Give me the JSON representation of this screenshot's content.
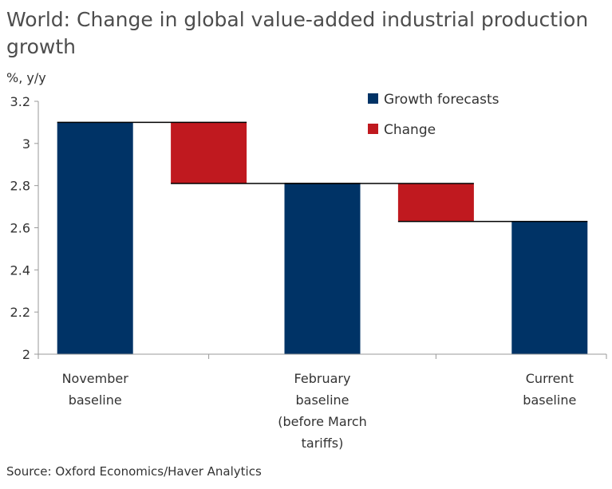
{
  "chart_data": {
    "type": "bar",
    "title": "World: Change in global value-added industrial production growth",
    "ylabel": "%, y/y",
    "ylim": [
      2,
      3.2
    ],
    "yticks": [
      "3.2",
      "3",
      "2.8",
      "2.6",
      "2.4",
      "2.2",
      "2"
    ],
    "ytick_values": [
      3.2,
      3.0,
      2.8,
      2.6,
      2.4,
      2.2,
      2.0
    ],
    "categories": [
      [
        "November",
        "baseline"
      ],
      [
        "February",
        "baseline",
        "(before March",
        "tariffs)"
      ],
      [
        "Current",
        "baseline"
      ]
    ],
    "bars": [
      {
        "series": "Growth forecasts",
        "bottom": 2.0,
        "top": 3.1
      },
      {
        "series": "Change",
        "bottom": 2.81,
        "top": 3.1
      },
      {
        "series": "Growth forecasts",
        "bottom": 2.0,
        "top": 2.81
      },
      {
        "series": "Change",
        "bottom": 2.63,
        "top": 2.81
      },
      {
        "series": "Growth forecasts",
        "bottom": 2.0,
        "top": 2.63
      }
    ],
    "legend": [
      {
        "label": "Growth forecasts",
        "color": "#003366"
      },
      {
        "label": "Change",
        "color": "#c0191f"
      }
    ],
    "legend_position": "top-right",
    "grid": false
  },
  "source": "Source: Oxford Economics/Haver Analytics"
}
